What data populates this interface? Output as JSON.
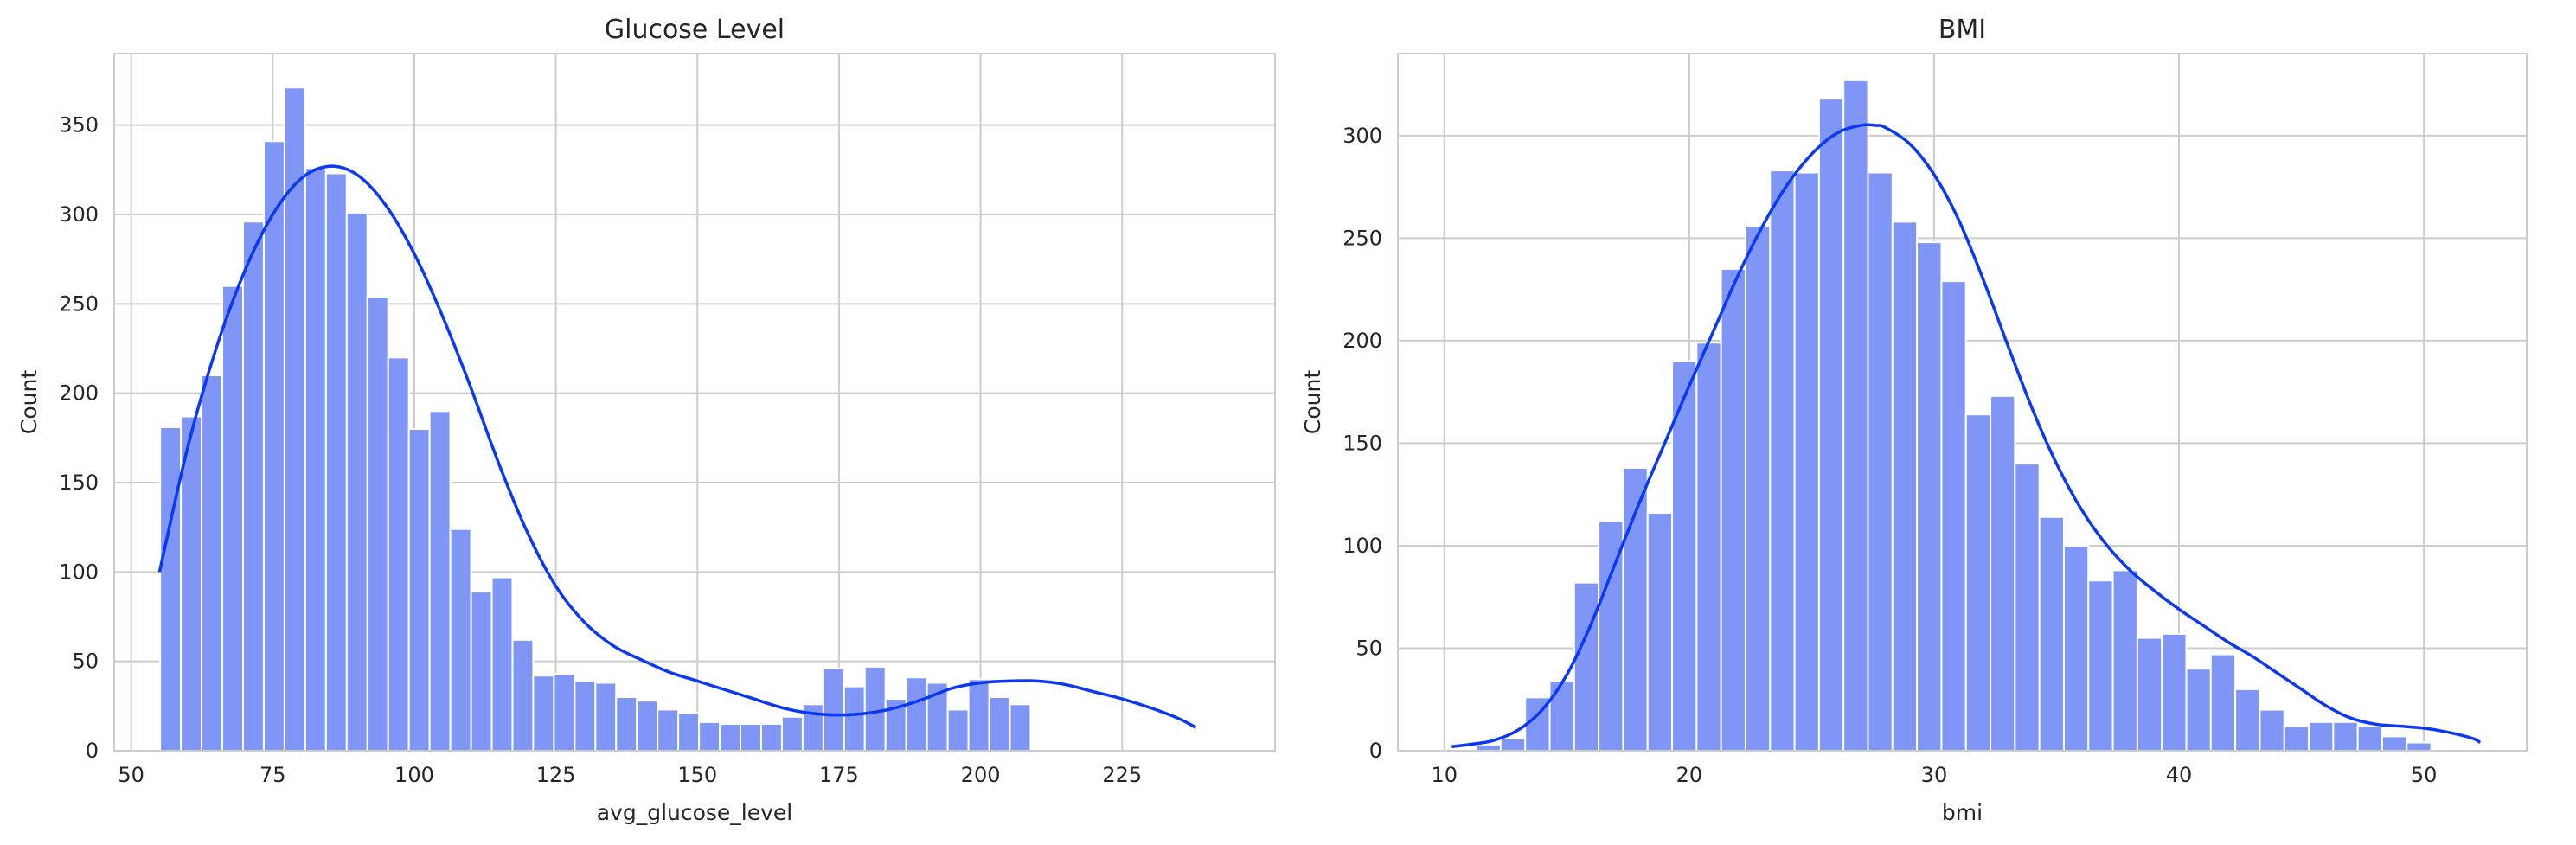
{
  "colors": {
    "bar_fill": "#7f96f7",
    "kde_line": "#0b38f2",
    "grid": "#cccccc",
    "text": "#262626"
  },
  "chart_data": [
    {
      "type": "histogram",
      "title": "Glucose Level",
      "xlabel": "avg_glucose_level",
      "ylabel": "Count",
      "xlim": [
        47,
        252
      ],
      "ylim": [
        0,
        390
      ],
      "xticks": [
        50,
        75,
        100,
        125,
        150,
        175,
        200,
        225
      ],
      "yticks": [
        0,
        50,
        100,
        150,
        200,
        250,
        300,
        350
      ],
      "grid": true,
      "kde": true,
      "bin_start": 55.12,
      "bin_width": 3.66,
      "values": [
        181,
        187,
        210,
        260,
        296,
        341,
        371,
        326,
        323,
        301,
        254,
        220,
        180,
        190,
        124,
        89,
        97,
        62,
        42,
        43,
        39,
        38,
        30,
        28,
        23,
        21,
        16,
        15,
        15,
        15,
        19,
        26,
        46,
        36,
        47,
        29,
        41,
        38,
        23,
        40,
        30,
        26
      ],
      "kde_x": [
        55,
        60,
        65,
        70,
        75,
        80,
        85,
        90,
        95,
        100,
        105,
        110,
        115,
        120,
        125,
        130,
        135,
        140,
        145,
        150,
        155,
        160,
        165,
        170,
        175,
        180,
        185,
        190,
        195,
        200,
        205,
        210,
        215,
        220,
        225,
        230,
        235,
        238
      ],
      "kde_y": [
        100,
        170,
        225,
        268,
        300,
        320,
        327,
        322,
        305,
        278,
        243,
        203,
        160,
        122,
        92,
        72,
        59,
        51,
        44,
        39,
        34,
        29,
        24,
        21,
        20,
        21,
        24,
        29,
        35,
        38,
        39,
        39,
        37,
        33,
        29,
        24,
        18,
        13
      ]
    },
    {
      "type": "histogram",
      "title": "BMI",
      "xlabel": "bmi",
      "ylabel": "Count",
      "xlim": [
        8.1,
        54.2
      ],
      "ylim": [
        0,
        340
      ],
      "xticks": [
        10,
        20,
        30,
        40,
        50
      ],
      "yticks": [
        0,
        50,
        100,
        150,
        200,
        250,
        300
      ],
      "grid": true,
      "kde": true,
      "bin_start": 10.3,
      "bin_width": 1.0,
      "values": [
        0,
        3,
        6,
        26,
        34,
        82,
        112,
        138,
        116,
        190,
        199,
        235,
        256,
        283,
        282,
        318,
        327,
        282,
        258,
        248,
        229,
        164,
        173,
        140,
        114,
        100,
        83,
        88,
        55,
        57,
        40,
        47,
        30,
        20,
        12,
        14,
        14,
        12,
        7,
        4
      ],
      "kde_x": [
        10.3,
        11,
        12,
        13,
        14,
        15,
        16,
        17,
        18,
        19,
        20,
        21,
        22,
        23,
        24,
        25,
        26,
        27,
        27.6,
        28,
        29,
        30,
        31,
        32,
        33,
        34,
        35,
        36,
        37,
        38,
        39,
        40,
        41,
        42,
        43,
        44,
        45,
        46,
        47,
        48,
        49,
        50,
        51,
        52,
        52.3
      ],
      "kde_y": [
        2,
        3,
        5,
        10,
        20,
        37,
        62,
        92,
        122,
        150,
        178,
        205,
        232,
        256,
        276,
        291,
        301,
        305,
        305,
        304,
        296,
        281,
        259,
        230,
        198,
        167,
        140,
        118,
        101,
        88,
        78,
        69,
        61,
        53,
        46,
        38,
        30,
        22,
        16,
        13,
        12,
        11,
        9,
        6,
        4
      ]
    }
  ]
}
